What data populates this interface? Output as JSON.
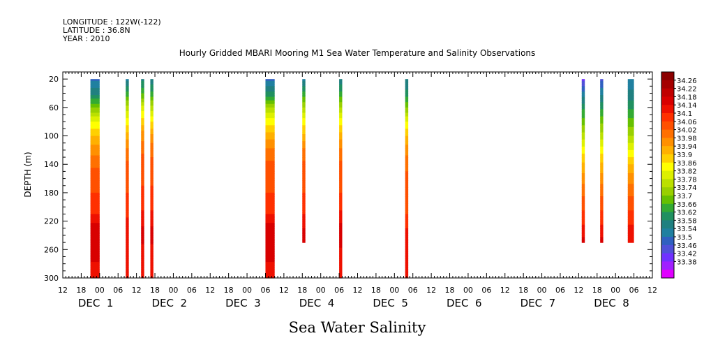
{
  "header": {
    "longitude": "LONGITUDE : 122W(-122)",
    "latitude": "LATITUDE : 36.8N",
    "year": "YEAR : 2010"
  },
  "chart_data": {
    "type": "heatmap",
    "title": "Hourly Gridded MBARI Mooring M1 Sea Water Temperature and Salinity Observations",
    "xlabel": "Sea Water Salinity",
    "ylabel": "DEPTH (m)",
    "x_unit": "hours since DEC 1 00:00 (2010)",
    "xlim": [
      -12,
      180
    ],
    "ylim": [
      300,
      10
    ],
    "y_reversed": true,
    "y_ticks": [
      20,
      60,
      100,
      140,
      180,
      220,
      260,
      300
    ],
    "hour_ticks": [
      {
        "x": -12,
        "label": "12"
      },
      {
        "x": -6,
        "label": "18"
      },
      {
        "x": 0,
        "label": "00"
      },
      {
        "x": 6,
        "label": "06"
      },
      {
        "x": 12,
        "label": "12"
      },
      {
        "x": 18,
        "label": "18"
      },
      {
        "x": 24,
        "label": "00"
      },
      {
        "x": 30,
        "label": "06"
      },
      {
        "x": 36,
        "label": "12"
      },
      {
        "x": 42,
        "label": "18"
      },
      {
        "x": 48,
        "label": "00"
      },
      {
        "x": 54,
        "label": "06"
      },
      {
        "x": 60,
        "label": "12"
      },
      {
        "x": 66,
        "label": "18"
      },
      {
        "x": 72,
        "label": "00"
      },
      {
        "x": 78,
        "label": "06"
      },
      {
        "x": 84,
        "label": "12"
      },
      {
        "x": 90,
        "label": "18"
      },
      {
        "x": 96,
        "label": "00"
      },
      {
        "x": 102,
        "label": "06"
      },
      {
        "x": 108,
        "label": "12"
      },
      {
        "x": 114,
        "label": "18"
      },
      {
        "x": 120,
        "label": "00"
      },
      {
        "x": 126,
        "label": "06"
      },
      {
        "x": 132,
        "label": "12"
      },
      {
        "x": 138,
        "label": "18"
      },
      {
        "x": 144,
        "label": "00"
      },
      {
        "x": 150,
        "label": "06"
      },
      {
        "x": 156,
        "label": "12"
      },
      {
        "x": 162,
        "label": "18"
      },
      {
        "x": 168,
        "label": "00"
      },
      {
        "x": 174,
        "label": "06"
      },
      {
        "x": 180,
        "label": "12"
      }
    ],
    "day_labels": [
      {
        "x": 0,
        "label": "DEC  1"
      },
      {
        "x": 24,
        "label": "DEC  2"
      },
      {
        "x": 48,
        "label": "DEC  3"
      },
      {
        "x": 72,
        "label": "DEC  4"
      },
      {
        "x": 96,
        "label": "DEC  5"
      },
      {
        "x": 120,
        "label": "DEC  6"
      },
      {
        "x": 144,
        "label": "DEC  7"
      },
      {
        "x": 168,
        "label": "DEC  8"
      }
    ],
    "colorbar": {
      "levels": [
        "34.26",
        "34.22",
        "34.18",
        "34.14",
        "34.1",
        "34.06",
        "34.02",
        "33.98",
        "33.94",
        "33.9",
        "33.86",
        "33.82",
        "33.78",
        "33.74",
        "33.7",
        "33.66",
        "33.62",
        "33.58",
        "33.54",
        "33.5",
        "33.46",
        "33.42",
        "33.38"
      ],
      "colors": [
        "#8b0000",
        "#a50000",
        "#c00000",
        "#d80000",
        "#ee1000",
        "#ff3000",
        "#ff5000",
        "#ff7000",
        "#ff9000",
        "#ffb000",
        "#ffd000",
        "#ffff00",
        "#ddf000",
        "#bbe000",
        "#99d000",
        "#66c000",
        "#33aa33",
        "#209060",
        "#208080",
        "#2080a0",
        "#3060c0",
        "#5050d8",
        "#7030ff",
        "#a020ff",
        "#e000ff"
      ]
    },
    "columns": [
      {
        "x0": -3,
        "x1": 0,
        "zmax": 300,
        "samples": [
          [
            20,
            33.52
          ],
          [
            40,
            33.6
          ],
          [
            60,
            33.72
          ],
          [
            80,
            33.84
          ],
          [
            100,
            33.92
          ],
          [
            120,
            33.98
          ],
          [
            140,
            34.02
          ],
          [
            160,
            34.06
          ],
          [
            180,
            34.07
          ],
          [
            200,
            34.08
          ],
          [
            220,
            34.14
          ],
          [
            240,
            34.18
          ],
          [
            260,
            34.18
          ],
          [
            280,
            34.14
          ],
          [
            300,
            34.14
          ]
        ]
      },
      {
        "x0": 8.5,
        "x1": 9.5,
        "zmax": 300,
        "samples": [
          [
            20,
            33.55
          ],
          [
            40,
            33.66
          ],
          [
            60,
            33.78
          ],
          [
            80,
            33.86
          ],
          [
            100,
            33.94
          ],
          [
            120,
            34.0
          ],
          [
            140,
            34.04
          ],
          [
            160,
            34.06
          ],
          [
            180,
            34.07
          ],
          [
            200,
            34.08
          ],
          [
            220,
            34.12
          ],
          [
            240,
            34.14
          ],
          [
            260,
            34.14
          ],
          [
            280,
            34.14
          ],
          [
            300,
            34.14
          ]
        ]
      },
      {
        "x0": 13.5,
        "x1": 14.5,
        "zmax": 300,
        "samples": [
          [
            20,
            33.6
          ],
          [
            40,
            33.68
          ],
          [
            60,
            33.82
          ],
          [
            80,
            33.9
          ],
          [
            100,
            33.98
          ],
          [
            120,
            34.02
          ],
          [
            140,
            34.06
          ],
          [
            160,
            34.06
          ],
          [
            180,
            34.08
          ],
          [
            200,
            34.1
          ],
          [
            220,
            34.14
          ],
          [
            240,
            34.16
          ],
          [
            260,
            34.14
          ],
          [
            280,
            34.14
          ],
          [
            300,
            34.14
          ]
        ]
      },
      {
        "x0": 16.5,
        "x1": 17.5,
        "zmax": 300,
        "samples": [
          [
            20,
            33.58
          ],
          [
            40,
            33.66
          ],
          [
            60,
            33.78
          ],
          [
            80,
            33.88
          ],
          [
            100,
            33.96
          ],
          [
            120,
            34.02
          ],
          [
            140,
            34.04
          ],
          [
            160,
            34.06
          ],
          [
            180,
            34.08
          ],
          [
            200,
            34.1
          ],
          [
            220,
            34.14
          ],
          [
            240,
            34.16
          ],
          [
            260,
            34.14
          ],
          [
            280,
            34.14
          ],
          [
            300,
            34.14
          ]
        ]
      },
      {
        "x0": 54,
        "x1": 57,
        "zmax": 300,
        "samples": [
          [
            20,
            33.52
          ],
          [
            40,
            33.62
          ],
          [
            60,
            33.76
          ],
          [
            80,
            33.86
          ],
          [
            100,
            33.94
          ],
          [
            120,
            34.0
          ],
          [
            140,
            34.04
          ],
          [
            160,
            34.06
          ],
          [
            180,
            34.07
          ],
          [
            200,
            34.08
          ],
          [
            220,
            34.14
          ],
          [
            240,
            34.18
          ],
          [
            260,
            34.18
          ],
          [
            280,
            34.14
          ],
          [
            300,
            34.14
          ]
        ]
      },
      {
        "x0": 66,
        "x1": 67,
        "zmax": 250,
        "samples": [
          [
            20,
            33.56
          ],
          [
            40,
            33.66
          ],
          [
            60,
            33.76
          ],
          [
            80,
            33.86
          ],
          [
            100,
            33.92
          ],
          [
            120,
            34.0
          ],
          [
            140,
            34.04
          ],
          [
            160,
            34.06
          ],
          [
            180,
            34.07
          ],
          [
            200,
            34.08
          ],
          [
            220,
            34.14
          ],
          [
            250,
            34.16
          ]
        ]
      },
      {
        "x0": 78,
        "x1": 79,
        "zmax": 300,
        "samples": [
          [
            20,
            33.58
          ],
          [
            40,
            33.66
          ],
          [
            60,
            33.76
          ],
          [
            80,
            33.86
          ],
          [
            100,
            33.94
          ],
          [
            120,
            34.0
          ],
          [
            140,
            34.04
          ],
          [
            160,
            34.06
          ],
          [
            180,
            34.07
          ],
          [
            200,
            34.1
          ],
          [
            220,
            34.14
          ],
          [
            240,
            34.18
          ],
          [
            260,
            34.14
          ],
          [
            280,
            34.14
          ],
          [
            300,
            34.14
          ]
        ]
      },
      {
        "x0": 99.5,
        "x1": 100.5,
        "zmax": 300,
        "samples": [
          [
            20,
            33.58
          ],
          [
            40,
            33.62
          ],
          [
            60,
            33.72
          ],
          [
            80,
            33.84
          ],
          [
            100,
            33.92
          ],
          [
            120,
            33.98
          ],
          [
            140,
            34.02
          ],
          [
            160,
            34.04
          ],
          [
            180,
            34.06
          ],
          [
            200,
            34.06
          ],
          [
            220,
            34.08
          ],
          [
            240,
            34.14
          ],
          [
            260,
            34.14
          ],
          [
            280,
            34.14
          ],
          [
            300,
            34.14
          ]
        ]
      },
      {
        "x0": 157,
        "x1": 158,
        "zmax": 250,
        "samples": [
          [
            20,
            33.44
          ],
          [
            40,
            33.54
          ],
          [
            60,
            33.64
          ],
          [
            80,
            33.7
          ],
          [
            100,
            33.78
          ],
          [
            120,
            33.86
          ],
          [
            140,
            33.92
          ],
          [
            160,
            33.98
          ],
          [
            180,
            34.02
          ],
          [
            200,
            34.06
          ],
          [
            220,
            34.1
          ],
          [
            250,
            34.16
          ]
        ]
      },
      {
        "x0": 163,
        "x1": 164,
        "zmax": 250,
        "samples": [
          [
            20,
            33.48
          ],
          [
            40,
            33.56
          ],
          [
            60,
            33.64
          ],
          [
            80,
            33.72
          ],
          [
            100,
            33.78
          ],
          [
            120,
            33.86
          ],
          [
            140,
            33.92
          ],
          [
            160,
            33.98
          ],
          [
            180,
            34.02
          ],
          [
            200,
            34.06
          ],
          [
            220,
            34.1
          ],
          [
            250,
            34.16
          ]
        ]
      },
      {
        "x0": 172,
        "x1": 174,
        "zmax": 250,
        "samples": [
          [
            20,
            33.54
          ],
          [
            40,
            33.58
          ],
          [
            60,
            33.64
          ],
          [
            80,
            33.7
          ],
          [
            100,
            33.76
          ],
          [
            120,
            33.84
          ],
          [
            140,
            33.92
          ],
          [
            160,
            33.98
          ],
          [
            180,
            34.02
          ],
          [
            200,
            34.06
          ],
          [
            220,
            34.1
          ],
          [
            250,
            34.14
          ]
        ]
      }
    ]
  }
}
